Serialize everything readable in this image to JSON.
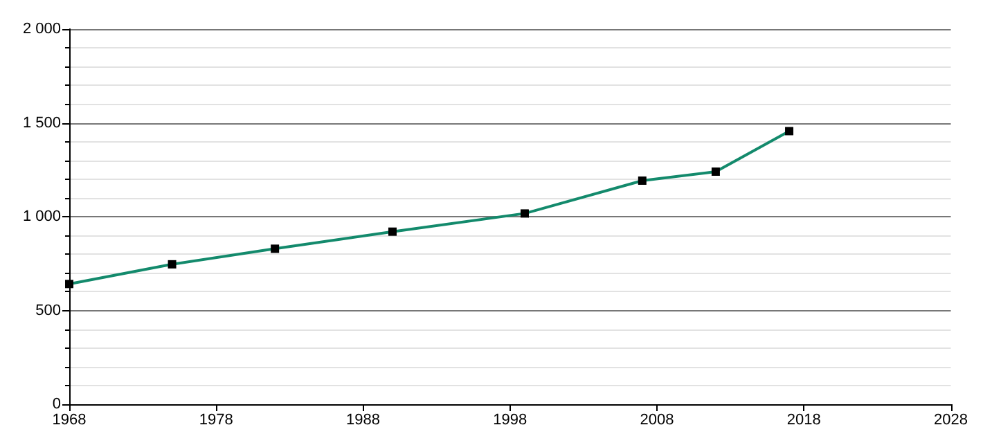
{
  "chart_data": {
    "type": "line",
    "x": [
      1968,
      1975,
      1982,
      1990,
      1999,
      2007,
      2012,
      2017
    ],
    "series": [
      {
        "color": "#138a6c",
        "values": [
          641,
          746,
          829,
          920,
          1017,
          1192,
          1240,
          1456
        ]
      }
    ],
    "xlim": [
      1968,
      2028
    ],
    "xticks": [
      1968,
      1978,
      1988,
      1998,
      2008,
      2018,
      2028
    ],
    "ylim": [
      0,
      2000
    ],
    "yticks": [
      0,
      500,
      {
        "value": 1000,
        "label": "1 000"
      },
      {
        "value": 1500,
        "label": "1 500"
      },
      {
        "value": 2000,
        "label": "2 000"
      }
    ],
    "grid": "y",
    "marker": "square",
    "line_style": "solid"
  }
}
